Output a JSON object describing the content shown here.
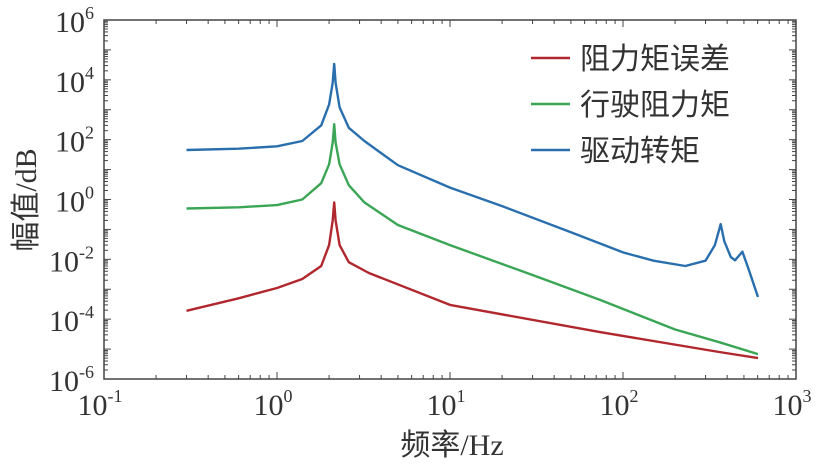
{
  "chart_data": {
    "type": "line",
    "title": "",
    "xlabel": "频率/Hz",
    "ylabel": "幅值/dB",
    "xscale": "log",
    "yscale": "log",
    "xlim": [
      0.1,
      1000
    ],
    "ylim": [
      1e-06,
      1000000.0
    ],
    "x_ticks": [
      {
        "value": 0.1,
        "base": "10",
        "exp": "-1"
      },
      {
        "value": 1,
        "base": "10",
        "exp": "0"
      },
      {
        "value": 10,
        "base": "10",
        "exp": "1"
      },
      {
        "value": 100,
        "base": "10",
        "exp": "2"
      },
      {
        "value": 1000,
        "base": "10",
        "exp": "3"
      }
    ],
    "y_ticks": [
      {
        "value": 1e-06,
        "base": "10",
        "exp": "-6"
      },
      {
        "value": 0.0001,
        "base": "10",
        "exp": "-4"
      },
      {
        "value": 0.01,
        "base": "10",
        "exp": "-2"
      },
      {
        "value": 1,
        "base": "10",
        "exp": "0"
      },
      {
        "value": 100.0,
        "base": "10",
        "exp": "2"
      },
      {
        "value": 10000.0,
        "base": "10",
        "exp": "4"
      },
      {
        "value": 1000000.0,
        "base": "10",
        "exp": "6"
      }
    ],
    "grid": false,
    "legend_position": "top-right",
    "series": [
      {
        "name": "阻力矩误差",
        "color": "#b0282e",
        "points": [
          [
            0.3,
            0.00019
          ],
          [
            0.6,
            0.0005
          ],
          [
            1.0,
            0.0011
          ],
          [
            1.4,
            0.0022
          ],
          [
            1.8,
            0.006
          ],
          [
            2.0,
            0.03
          ],
          [
            2.1,
            0.2
          ],
          [
            2.14,
            0.8
          ],
          [
            2.18,
            0.2
          ],
          [
            2.3,
            0.03
          ],
          [
            2.6,
            0.008
          ],
          [
            3.4,
            0.0035
          ],
          [
            10,
            0.0003
          ],
          [
            73.6,
            3.7e-05
          ],
          [
            360,
            8e-06
          ],
          [
            603,
            5e-06
          ]
        ]
      },
      {
        "name": "行驶阻力矩",
        "color": "#3aa655",
        "points": [
          [
            0.3,
            0.5
          ],
          [
            0.6,
            0.55
          ],
          [
            1.0,
            0.65
          ],
          [
            1.4,
            1.0
          ],
          [
            1.8,
            3.5
          ],
          [
            2.0,
            15
          ],
          [
            2.1,
            80
          ],
          [
            2.14,
            330
          ],
          [
            2.18,
            80
          ],
          [
            2.3,
            15
          ],
          [
            2.6,
            3
          ],
          [
            3.2,
            0.8
          ],
          [
            5,
            0.14
          ],
          [
            10,
            0.03
          ],
          [
            30,
            0.003
          ],
          [
            73.6,
            0.00044
          ],
          [
            200,
            4.5e-05
          ],
          [
            360,
            1.7e-05
          ],
          [
            603,
            6.8e-06
          ]
        ]
      },
      {
        "name": "驱动转矩",
        "color": "#2a6fad",
        "points": [
          [
            0.3,
            45
          ],
          [
            0.6,
            50
          ],
          [
            1.0,
            60
          ],
          [
            1.4,
            90
          ],
          [
            1.8,
            300
          ],
          [
            2.0,
            1500
          ],
          [
            2.1,
            8000
          ],
          [
            2.14,
            34000
          ],
          [
            2.18,
            8000
          ],
          [
            2.3,
            1200
          ],
          [
            2.6,
            250
          ],
          [
            3.2,
            90
          ],
          [
            5,
            14
          ],
          [
            10,
            2.5
          ],
          [
            20,
            0.6
          ],
          [
            50,
            0.08
          ],
          [
            100,
            0.017
          ],
          [
            150,
            0.009
          ],
          [
            229,
            0.006
          ],
          [
            300,
            0.009
          ],
          [
            340,
            0.03
          ],
          [
            367,
            0.15
          ],
          [
            385,
            0.04
          ],
          [
            420,
            0.012
          ],
          [
            444,
            0.0093
          ],
          [
            490,
            0.018
          ],
          [
            530,
            0.005
          ],
          [
            603,
            0.00055
          ]
        ]
      }
    ]
  }
}
